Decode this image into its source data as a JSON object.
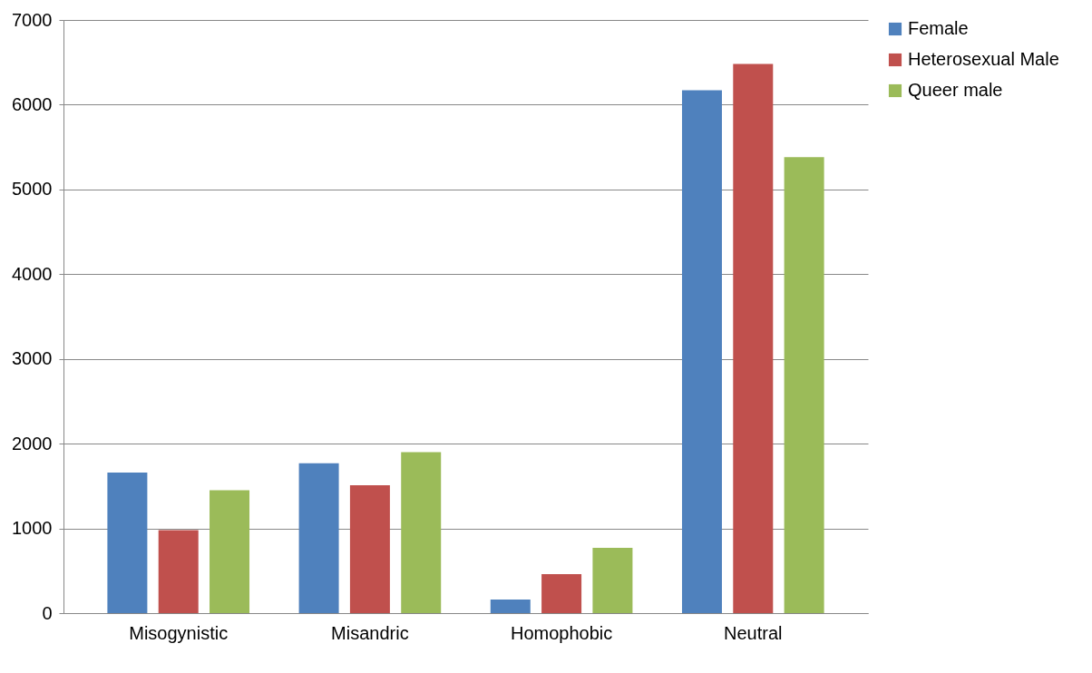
{
  "chart_data": {
    "type": "bar",
    "categories": [
      "Misogynistic",
      "Misandric",
      "Homophobic",
      "Neutral"
    ],
    "series": [
      {
        "name": "Female",
        "color": "#4f81bd",
        "values": [
          1660,
          1770,
          160,
          6170
        ]
      },
      {
        "name": "Heterosexual Male",
        "color": "#c0504d",
        "values": [
          980,
          1510,
          460,
          6480
        ]
      },
      {
        "name": "Queer male",
        "color": "#9bbb59",
        "values": [
          1450,
          1900,
          770,
          5380
        ]
      }
    ],
    "ylim": [
      0,
      7000
    ],
    "yticks": [
      0,
      1000,
      2000,
      3000,
      4000,
      5000,
      6000,
      7000
    ],
    "grid": "y",
    "legend": "right"
  }
}
